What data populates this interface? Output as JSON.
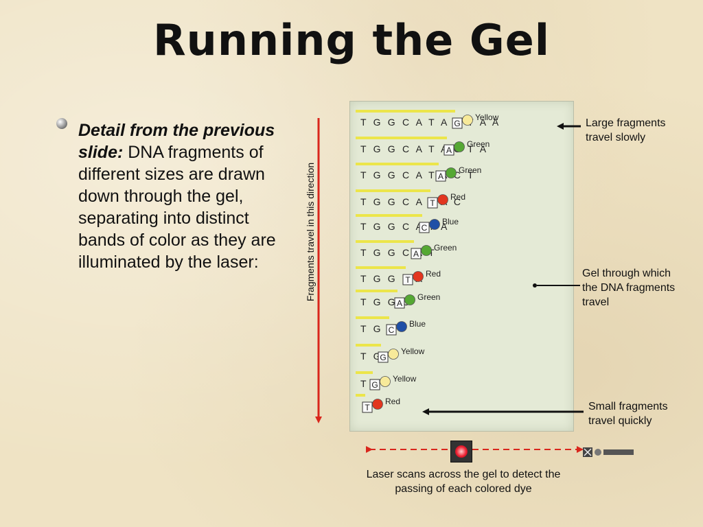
{
  "slide": {
    "title": "Running the Gel",
    "body_emphasis": "Detail from the previous slide:",
    "body_text": "DNA fragments of different sizes are drawn down through the gel, separating into distinct bands of color as they are illuminated by the laser:",
    "axis_label": "Fragments travel in this direction",
    "annotations": {
      "large": "Large fragments travel slowly",
      "gel": "Gel through which the DNA fragments travel",
      "small": "Small fragments travel quickly",
      "laser": "Laser scans across the gel to detect the passing of each colored dye"
    }
  },
  "colors": {
    "Yellow": "#f7ea9a",
    "Green": "#55a833",
    "Red": "#e2361f",
    "Blue": "#1f4fa6",
    "band": "#ece54a",
    "arrow_red": "#d9261c"
  },
  "bands": [
    {
      "sequence": "TGGCATACTAA",
      "base": "G",
      "dye": "Yellow"
    },
    {
      "sequence": "TGGCATACTA",
      "base": "A",
      "dye": "Green"
    },
    {
      "sequence": "TGGCATACT",
      "base": "A",
      "dye": "Green"
    },
    {
      "sequence": "TGGCATAC",
      "base": "T",
      "dye": "Red"
    },
    {
      "sequence": "TGGCATA",
      "base": "C",
      "dye": "Blue"
    },
    {
      "sequence": "TGGCAT",
      "base": "A",
      "dye": "Green"
    },
    {
      "sequence": "TGGCA",
      "base": "T",
      "dye": "Red"
    },
    {
      "sequence": "TGGC",
      "base": "A",
      "dye": "Green"
    },
    {
      "sequence": "TGG",
      "base": "C",
      "dye": "Blue"
    },
    {
      "sequence": "TG",
      "base": "G",
      "dye": "Yellow"
    },
    {
      "sequence": "T",
      "base": "G",
      "dye": "Yellow"
    },
    {
      "sequence": "",
      "base": "T",
      "dye": "Red"
    }
  ]
}
